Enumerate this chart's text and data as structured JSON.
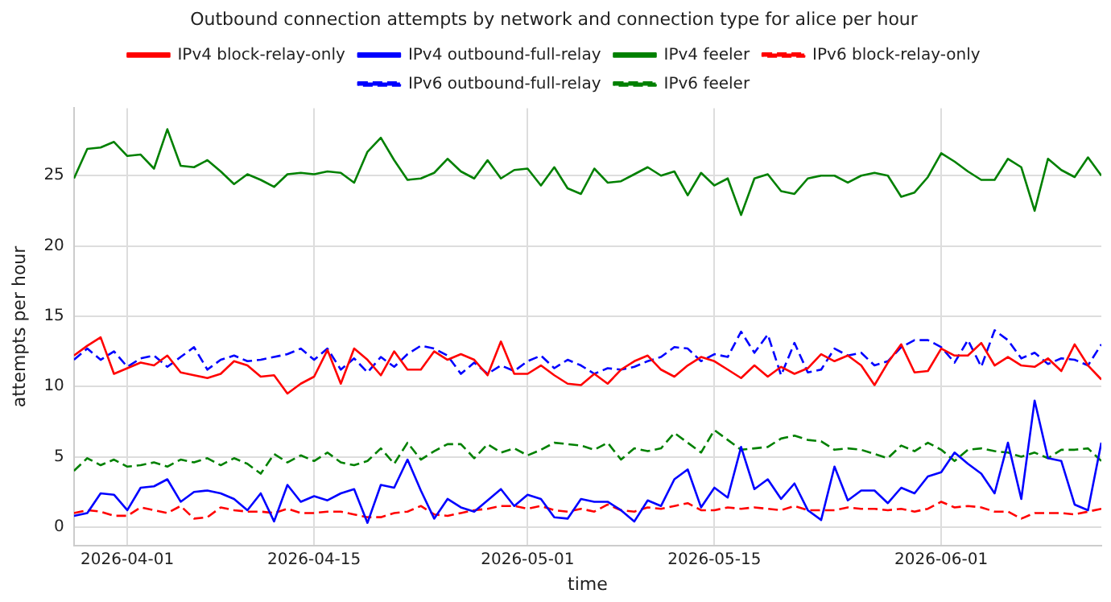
{
  "chart_data": {
    "type": "line",
    "title": "Outbound connection attempts by network and connection type for alice per hour",
    "xlabel": "time",
    "ylabel": "attempts per hour",
    "x": [
      "2026-03-28",
      "2026-03-29",
      "2026-03-30",
      "2026-03-31",
      "2026-04-01",
      "2026-04-02",
      "2026-04-03",
      "2026-04-04",
      "2026-04-05",
      "2026-04-06",
      "2026-04-07",
      "2026-04-08",
      "2026-04-09",
      "2026-04-10",
      "2026-04-11",
      "2026-04-12",
      "2026-04-13",
      "2026-04-14",
      "2026-04-15",
      "2026-04-16",
      "2026-04-17",
      "2026-04-18",
      "2026-04-19",
      "2026-04-20",
      "2026-04-21",
      "2026-04-22",
      "2026-04-23",
      "2026-04-24",
      "2026-04-25",
      "2026-04-26",
      "2026-04-27",
      "2026-04-28",
      "2026-04-29",
      "2026-04-30",
      "2026-05-01",
      "2026-05-02",
      "2026-05-03",
      "2026-05-04",
      "2026-05-05",
      "2026-05-06",
      "2026-05-07",
      "2026-05-08",
      "2026-05-09",
      "2026-05-10",
      "2026-05-11",
      "2026-05-12",
      "2026-05-13",
      "2026-05-14",
      "2026-05-15",
      "2026-05-16",
      "2026-05-17",
      "2026-05-18",
      "2026-05-19",
      "2026-05-20",
      "2026-05-21",
      "2026-05-22",
      "2026-05-23",
      "2026-05-24",
      "2026-05-25",
      "2026-05-26",
      "2026-05-27",
      "2026-05-28",
      "2026-05-29",
      "2026-05-30",
      "2026-05-31",
      "2026-06-01",
      "2026-06-02",
      "2026-06-03",
      "2026-06-04",
      "2026-06-05",
      "2026-06-06",
      "2026-06-07",
      "2026-06-08",
      "2026-06-09",
      "2026-06-10",
      "2026-06-11",
      "2026-06-12",
      "2026-06-13"
    ],
    "series": [
      {
        "name": "IPv4 block-relay-only",
        "color": "#ff0000",
        "line_style": "solid",
        "values": [
          12.2,
          12.9,
          13.5,
          10.9,
          11.3,
          11.7,
          11.5,
          12.2,
          11.0,
          10.8,
          10.6,
          10.9,
          11.8,
          11.5,
          10.7,
          10.8,
          9.5,
          10.2,
          10.7,
          12.6,
          10.2,
          12.7,
          11.9,
          10.8,
          12.5,
          11.2,
          11.2,
          12.5,
          11.9,
          12.3,
          11.9,
          10.8,
          13.2,
          10.9,
          10.9,
          11.5,
          10.8,
          10.2,
          10.1,
          10.9,
          10.2,
          11.2,
          11.8,
          12.2,
          11.2,
          10.7,
          11.5,
          12.1,
          11.8,
          11.2,
          10.6,
          11.5,
          10.7,
          11.4,
          10.9,
          11.3,
          12.3,
          11.8,
          12.2,
          11.5,
          10.1,
          11.7,
          13.0,
          11.0,
          11.1,
          12.7,
          12.2,
          12.2,
          13.1,
          11.5,
          12.1,
          11.5,
          11.4,
          12.0,
          11.1,
          13.0,
          11.5,
          10.5
        ]
      },
      {
        "name": "IPv4 outbound-full-relay",
        "color": "#0000ff",
        "line_style": "solid",
        "values": [
          0.8,
          1.0,
          2.4,
          2.3,
          1.2,
          2.8,
          2.9,
          3.4,
          1.8,
          2.5,
          2.6,
          2.4,
          2.0,
          1.2,
          2.4,
          0.4,
          3.0,
          1.8,
          2.2,
          1.9,
          2.4,
          2.7,
          0.3,
          3.0,
          2.8,
          4.8,
          2.6,
          0.6,
          2.0,
          1.4,
          1.1,
          1.9,
          2.7,
          1.5,
          2.3,
          2.0,
          0.7,
          0.6,
          2.0,
          1.8,
          1.8,
          1.2,
          0.4,
          1.9,
          1.5,
          3.4,
          4.1,
          1.4,
          2.8,
          2.1,
          5.7,
          2.7,
          3.4,
          2.0,
          3.1,
          1.2,
          0.5,
          4.3,
          1.9,
          2.6,
          2.6,
          1.7,
          2.8,
          2.4,
          3.6,
          3.9,
          5.3,
          4.5,
          3.8,
          2.4,
          6.0,
          2.0,
          9.0,
          4.9,
          4.7,
          1.6,
          1.2,
          6.0
        ]
      },
      {
        "name": "IPv4 feeler",
        "color": "#008000",
        "line_style": "solid",
        "values": [
          24.8,
          26.9,
          27.0,
          27.4,
          26.4,
          26.5,
          25.5,
          28.3,
          25.7,
          25.6,
          26.1,
          25.3,
          24.4,
          25.1,
          24.7,
          24.2,
          25.1,
          25.2,
          25.1,
          25.3,
          25.2,
          24.5,
          26.7,
          27.7,
          26.1,
          24.7,
          24.8,
          25.2,
          26.2,
          25.3,
          24.8,
          26.1,
          24.8,
          25.4,
          25.5,
          24.3,
          25.6,
          24.1,
          23.7,
          25.5,
          24.5,
          24.6,
          25.1,
          25.6,
          25.0,
          25.3,
          23.6,
          25.2,
          24.3,
          24.8,
          22.2,
          24.8,
          25.1,
          23.9,
          23.7,
          24.8,
          25.0,
          25.0,
          24.5,
          25.0,
          25.2,
          25.0,
          23.5,
          23.8,
          24.9,
          26.6,
          26.0,
          25.3,
          24.7,
          24.7,
          26.2,
          25.6,
          22.5,
          26.2,
          25.4,
          24.9,
          26.3,
          25.0
        ]
      },
      {
        "name": "IPv6 block-relay-only",
        "color": "#ff0000",
        "line_style": "dashed",
        "values": [
          1.0,
          1.2,
          1.1,
          0.8,
          0.8,
          1.4,
          1.2,
          1.0,
          1.5,
          0.6,
          0.7,
          1.4,
          1.2,
          1.1,
          1.1,
          1.0,
          1.3,
          1.0,
          1.0,
          1.1,
          1.1,
          0.9,
          0.7,
          0.7,
          1.0,
          1.1,
          1.5,
          0.9,
          0.8,
          1.0,
          1.2,
          1.3,
          1.5,
          1.5,
          1.3,
          1.5,
          1.2,
          1.1,
          1.3,
          1.1,
          1.6,
          1.2,
          1.1,
          1.4,
          1.3,
          1.5,
          1.7,
          1.2,
          1.2,
          1.4,
          1.3,
          1.4,
          1.3,
          1.2,
          1.5,
          1.2,
          1.2,
          1.2,
          1.4,
          1.3,
          1.3,
          1.2,
          1.3,
          1.1,
          1.3,
          1.8,
          1.4,
          1.5,
          1.4,
          1.1,
          1.1,
          0.6,
          1.0,
          1.0,
          1.0,
          0.9,
          1.1,
          1.3
        ]
      },
      {
        "name": "IPv6 outbound-full-relay",
        "color": "#0000ff",
        "line_style": "dashed",
        "values": [
          11.9,
          12.7,
          11.9,
          12.5,
          11.4,
          12.0,
          12.2,
          11.4,
          12.1,
          12.8,
          11.2,
          11.9,
          12.2,
          11.8,
          11.9,
          12.1,
          12.3,
          12.7,
          11.9,
          12.7,
          11.2,
          12.0,
          11.0,
          12.1,
          11.4,
          12.3,
          12.9,
          12.7,
          12.2,
          10.9,
          11.7,
          10.9,
          11.5,
          11.1,
          11.8,
          12.2,
          11.3,
          11.9,
          11.5,
          10.9,
          11.3,
          11.2,
          11.4,
          11.8,
          12.1,
          12.8,
          12.7,
          11.8,
          12.3,
          12.1,
          13.9,
          12.4,
          13.7,
          10.8,
          13.1,
          11.0,
          11.2,
          12.7,
          12.2,
          12.4,
          11.5,
          11.8,
          12.8,
          13.3,
          13.3,
          12.8,
          11.7,
          13.3,
          11.4,
          14.0,
          13.3,
          12.0,
          12.4,
          11.6,
          12.0,
          11.9,
          11.5,
          13.0
        ]
      },
      {
        "name": "IPv6 feeler",
        "color": "#008000",
        "line_style": "dashed",
        "values": [
          4.0,
          4.9,
          4.4,
          4.8,
          4.3,
          4.4,
          4.6,
          4.3,
          4.8,
          4.6,
          4.9,
          4.4,
          4.9,
          4.5,
          3.8,
          5.2,
          4.6,
          5.1,
          4.7,
          5.3,
          4.6,
          4.4,
          4.7,
          5.6,
          4.5,
          6.0,
          4.8,
          5.4,
          5.9,
          5.9,
          4.9,
          5.9,
          5.3,
          5.6,
          5.1,
          5.5,
          6.0,
          5.9,
          5.8,
          5.5,
          6.0,
          4.8,
          5.6,
          5.4,
          5.6,
          6.7,
          6.0,
          5.3,
          6.9,
          6.2,
          5.5,
          5.6,
          5.7,
          6.3,
          6.5,
          6.2,
          6.1,
          5.5,
          5.6,
          5.5,
          5.2,
          4.9,
          5.8,
          5.4,
          6.0,
          5.5,
          4.7,
          5.5,
          5.6,
          5.4,
          5.3,
          5.0,
          5.3,
          4.9,
          5.5,
          5.5,
          5.6,
          4.7
        ]
      }
    ],
    "xlim": [
      "2026-03-28",
      "2026-06-13"
    ],
    "xticks": [
      "2026-04-01",
      "2026-04-15",
      "2026-05-01",
      "2026-05-15",
      "2026-06-01"
    ],
    "ylim": [
      -1.3,
      29.8
    ],
    "yticks": [
      0,
      5,
      10,
      15,
      20,
      25
    ],
    "grid": true,
    "legend": "top"
  }
}
